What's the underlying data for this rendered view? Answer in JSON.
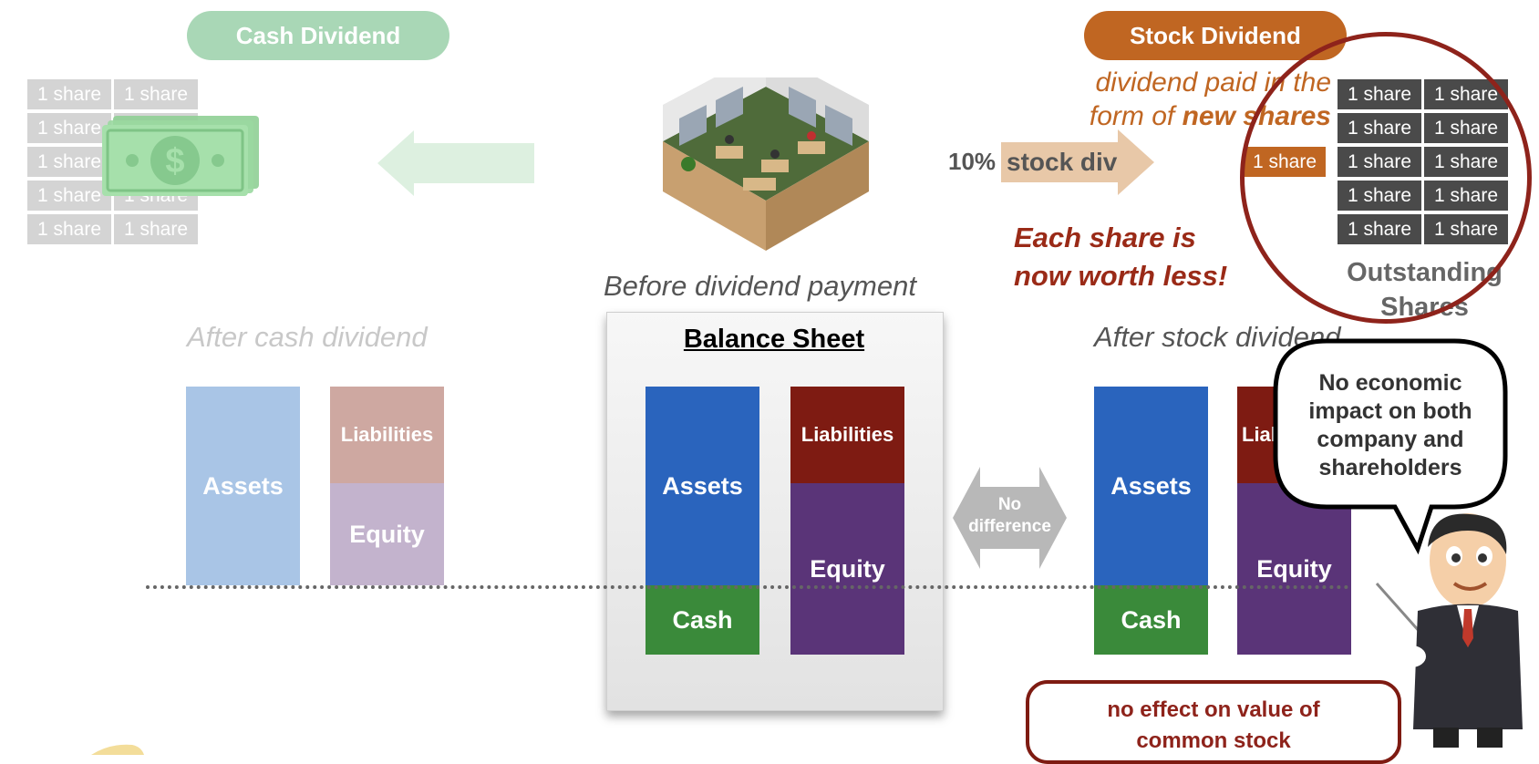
{
  "cash_dividend": {
    "title": "Cash Dividend",
    "share_label": "1 share",
    "caption": "After cash dividend",
    "assets": "Assets",
    "liabilities": "Liabilities",
    "equity": "Equity"
  },
  "stock_dividend": {
    "title": "Stock Dividend",
    "description_line1": "dividend paid in the",
    "description_line2_prefix": "form of",
    "description_line2_emphasis": "new shares",
    "share_label": "1 share",
    "pct_label": "10%",
    "arrow_label": "stock div",
    "warning_line1": "Each share is",
    "warning_line2": "now worth less!",
    "outstanding_line1": "Outstanding",
    "outstanding_line2": "Shares",
    "caption": "After stock dividend",
    "assets": "Assets",
    "liabilities": "Liabilities",
    "equity": "Equity",
    "cash": "Cash"
  },
  "center": {
    "caption": "Before dividend payment",
    "balance_sheet_title": "Balance Sheet",
    "assets": "Assets",
    "liabilities": "Liabilities",
    "equity": "Equity",
    "cash": "Cash",
    "no_difference_line1": "No",
    "no_difference_line2": "difference"
  },
  "speech_bubble": {
    "line1": "No economic",
    "line2": "impact on both",
    "line3": "company and",
    "line4": "shareholders"
  },
  "note_box": {
    "line1": "no effect on value of",
    "line2": "common stock"
  },
  "colors": {
    "assets": "#2a64bd",
    "liabilities": "#7e1b12",
    "equity": "#5a3478",
    "cash": "#3a8a3a",
    "cash_pill": "#a9d7b6",
    "stock_pill": "#c06622",
    "accent_text": "#c06622",
    "warning_text": "#9a2a17",
    "circle": "#8e231b"
  }
}
